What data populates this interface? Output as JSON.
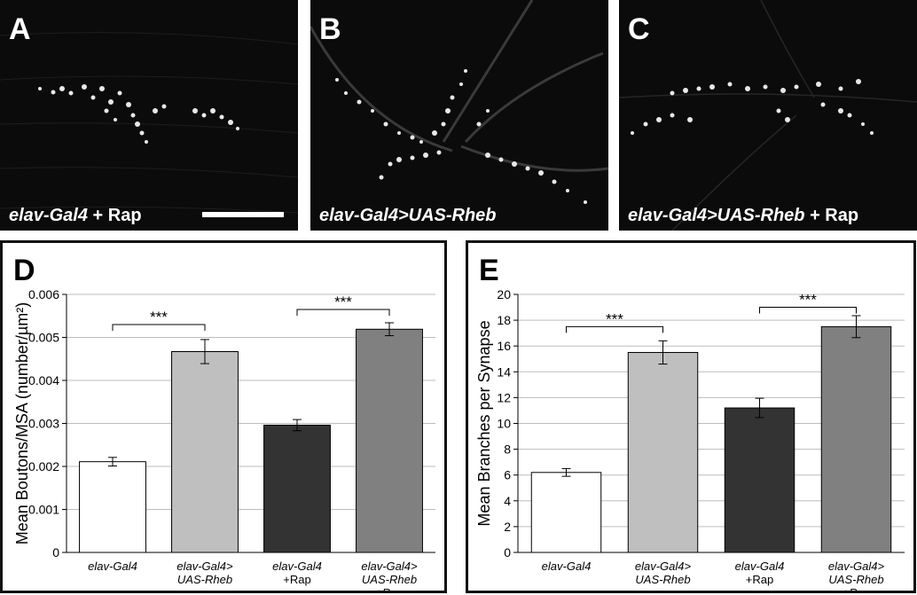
{
  "figure": {
    "panels_top": [
      {
        "letter": "A",
        "caption_italic": "elav-Gal4",
        "caption_rest": " + Rap"
      },
      {
        "letter": "B",
        "caption_italic": "elav-Gal4>UAS-Rheb",
        "caption_rest": ""
      },
      {
        "letter": "C",
        "caption_italic": "elav-Gal4>UAS-Rheb",
        "caption_rest": " + Rap"
      }
    ]
  },
  "chart_data": [
    {
      "letter": "D",
      "type": "bar",
      "ylabel": "Mean Boutons/MSA (number/µm²)",
      "ylim": [
        0,
        0.006
      ],
      "yticks": [
        "0",
        "0.001",
        "0.002",
        "0.003",
        "0.004",
        "0.005",
        "0.006"
      ],
      "categories": [
        [
          "elav-Gal4"
        ],
        [
          "elav-Gal4>",
          "UAS-Rheb"
        ],
        [
          "elav-Gal4",
          "+Rap"
        ],
        [
          "elav-Gal4>",
          "UAS-Rheb",
          "+Rap"
        ]
      ],
      "values": [
        0.00211,
        0.00467,
        0.00296,
        0.00519
      ],
      "errors": [
        0.0001,
        0.00028,
        0.00013,
        0.00015
      ],
      "colors": [
        "#ffffff",
        "#bfbfbf",
        "#333333",
        "#808080"
      ],
      "significance": [
        {
          "from": 0,
          "to": 1,
          "label": "***",
          "y": 0.0053
        },
        {
          "from": 2,
          "to": 3,
          "label": "***",
          "y": 0.00565
        }
      ],
      "grid": true
    },
    {
      "letter": "E",
      "type": "bar",
      "ylabel": "Mean Branches per Synapse",
      "ylim": [
        0,
        20
      ],
      "yticks": [
        "0",
        "2",
        "4",
        "6",
        "8",
        "10",
        "12",
        "14",
        "16",
        "18",
        "20"
      ],
      "categories": [
        [
          "elav-Gal4"
        ],
        [
          "elav-Gal4>",
          "UAS-Rheb"
        ],
        [
          "elav-Gal4",
          "+Rap"
        ],
        [
          "elav-Gal4>",
          "UAS-Rheb",
          "+Rap"
        ]
      ],
      "values": [
        6.2,
        15.5,
        11.2,
        17.5
      ],
      "errors": [
        0.3,
        0.9,
        0.75,
        0.85
      ],
      "colors": [
        "#ffffff",
        "#bfbfbf",
        "#333333",
        "#808080"
      ],
      "significance": [
        {
          "from": 0,
          "to": 1,
          "label": "***",
          "y": 17.5
        },
        {
          "from": 2,
          "to": 3,
          "label": "***",
          "y": 19.0
        }
      ],
      "grid": true
    }
  ]
}
